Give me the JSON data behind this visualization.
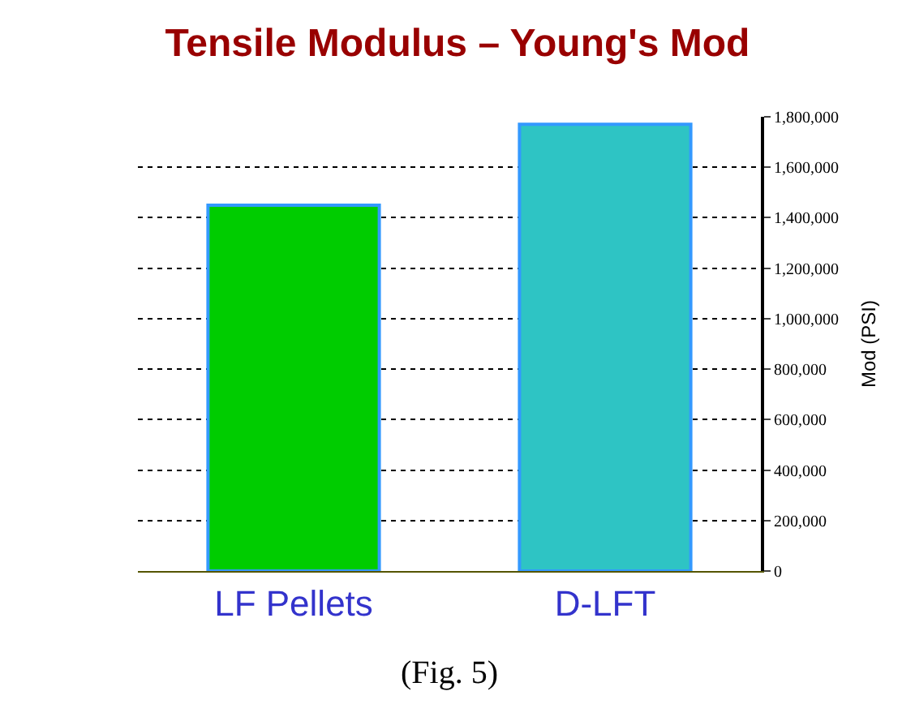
{
  "chart_data": {
    "type": "bar",
    "title": "Tensile Modulus – Young's Mod",
    "ylabel": "Mod (PSI)",
    "categories": [
      "LF Pellets",
      "D-LFT"
    ],
    "values": [
      1450000,
      1770000
    ],
    "colors": [
      "#00cc00",
      "#2ec4c4"
    ],
    "ylim": [
      0,
      1800000
    ],
    "yticks": [
      {
        "value": 0,
        "label": "0"
      },
      {
        "value": 200000,
        "label": "200,000"
      },
      {
        "value": 400000,
        "label": "400,000"
      },
      {
        "value": 600000,
        "label": "600,000"
      },
      {
        "value": 800000,
        "label": "800,000"
      },
      {
        "value": 1000000,
        "label": "1,000,000"
      },
      {
        "value": 1200000,
        "label": "1,200,000"
      },
      {
        "value": 1400000,
        "label": "1,400,000"
      },
      {
        "value": 1600000,
        "label": "1,600,000"
      },
      {
        "value": 1800000,
        "label": "1,800,000"
      }
    ],
    "grid": "y",
    "legend": false,
    "annotations": [
      "(Fig. 5)"
    ]
  }
}
